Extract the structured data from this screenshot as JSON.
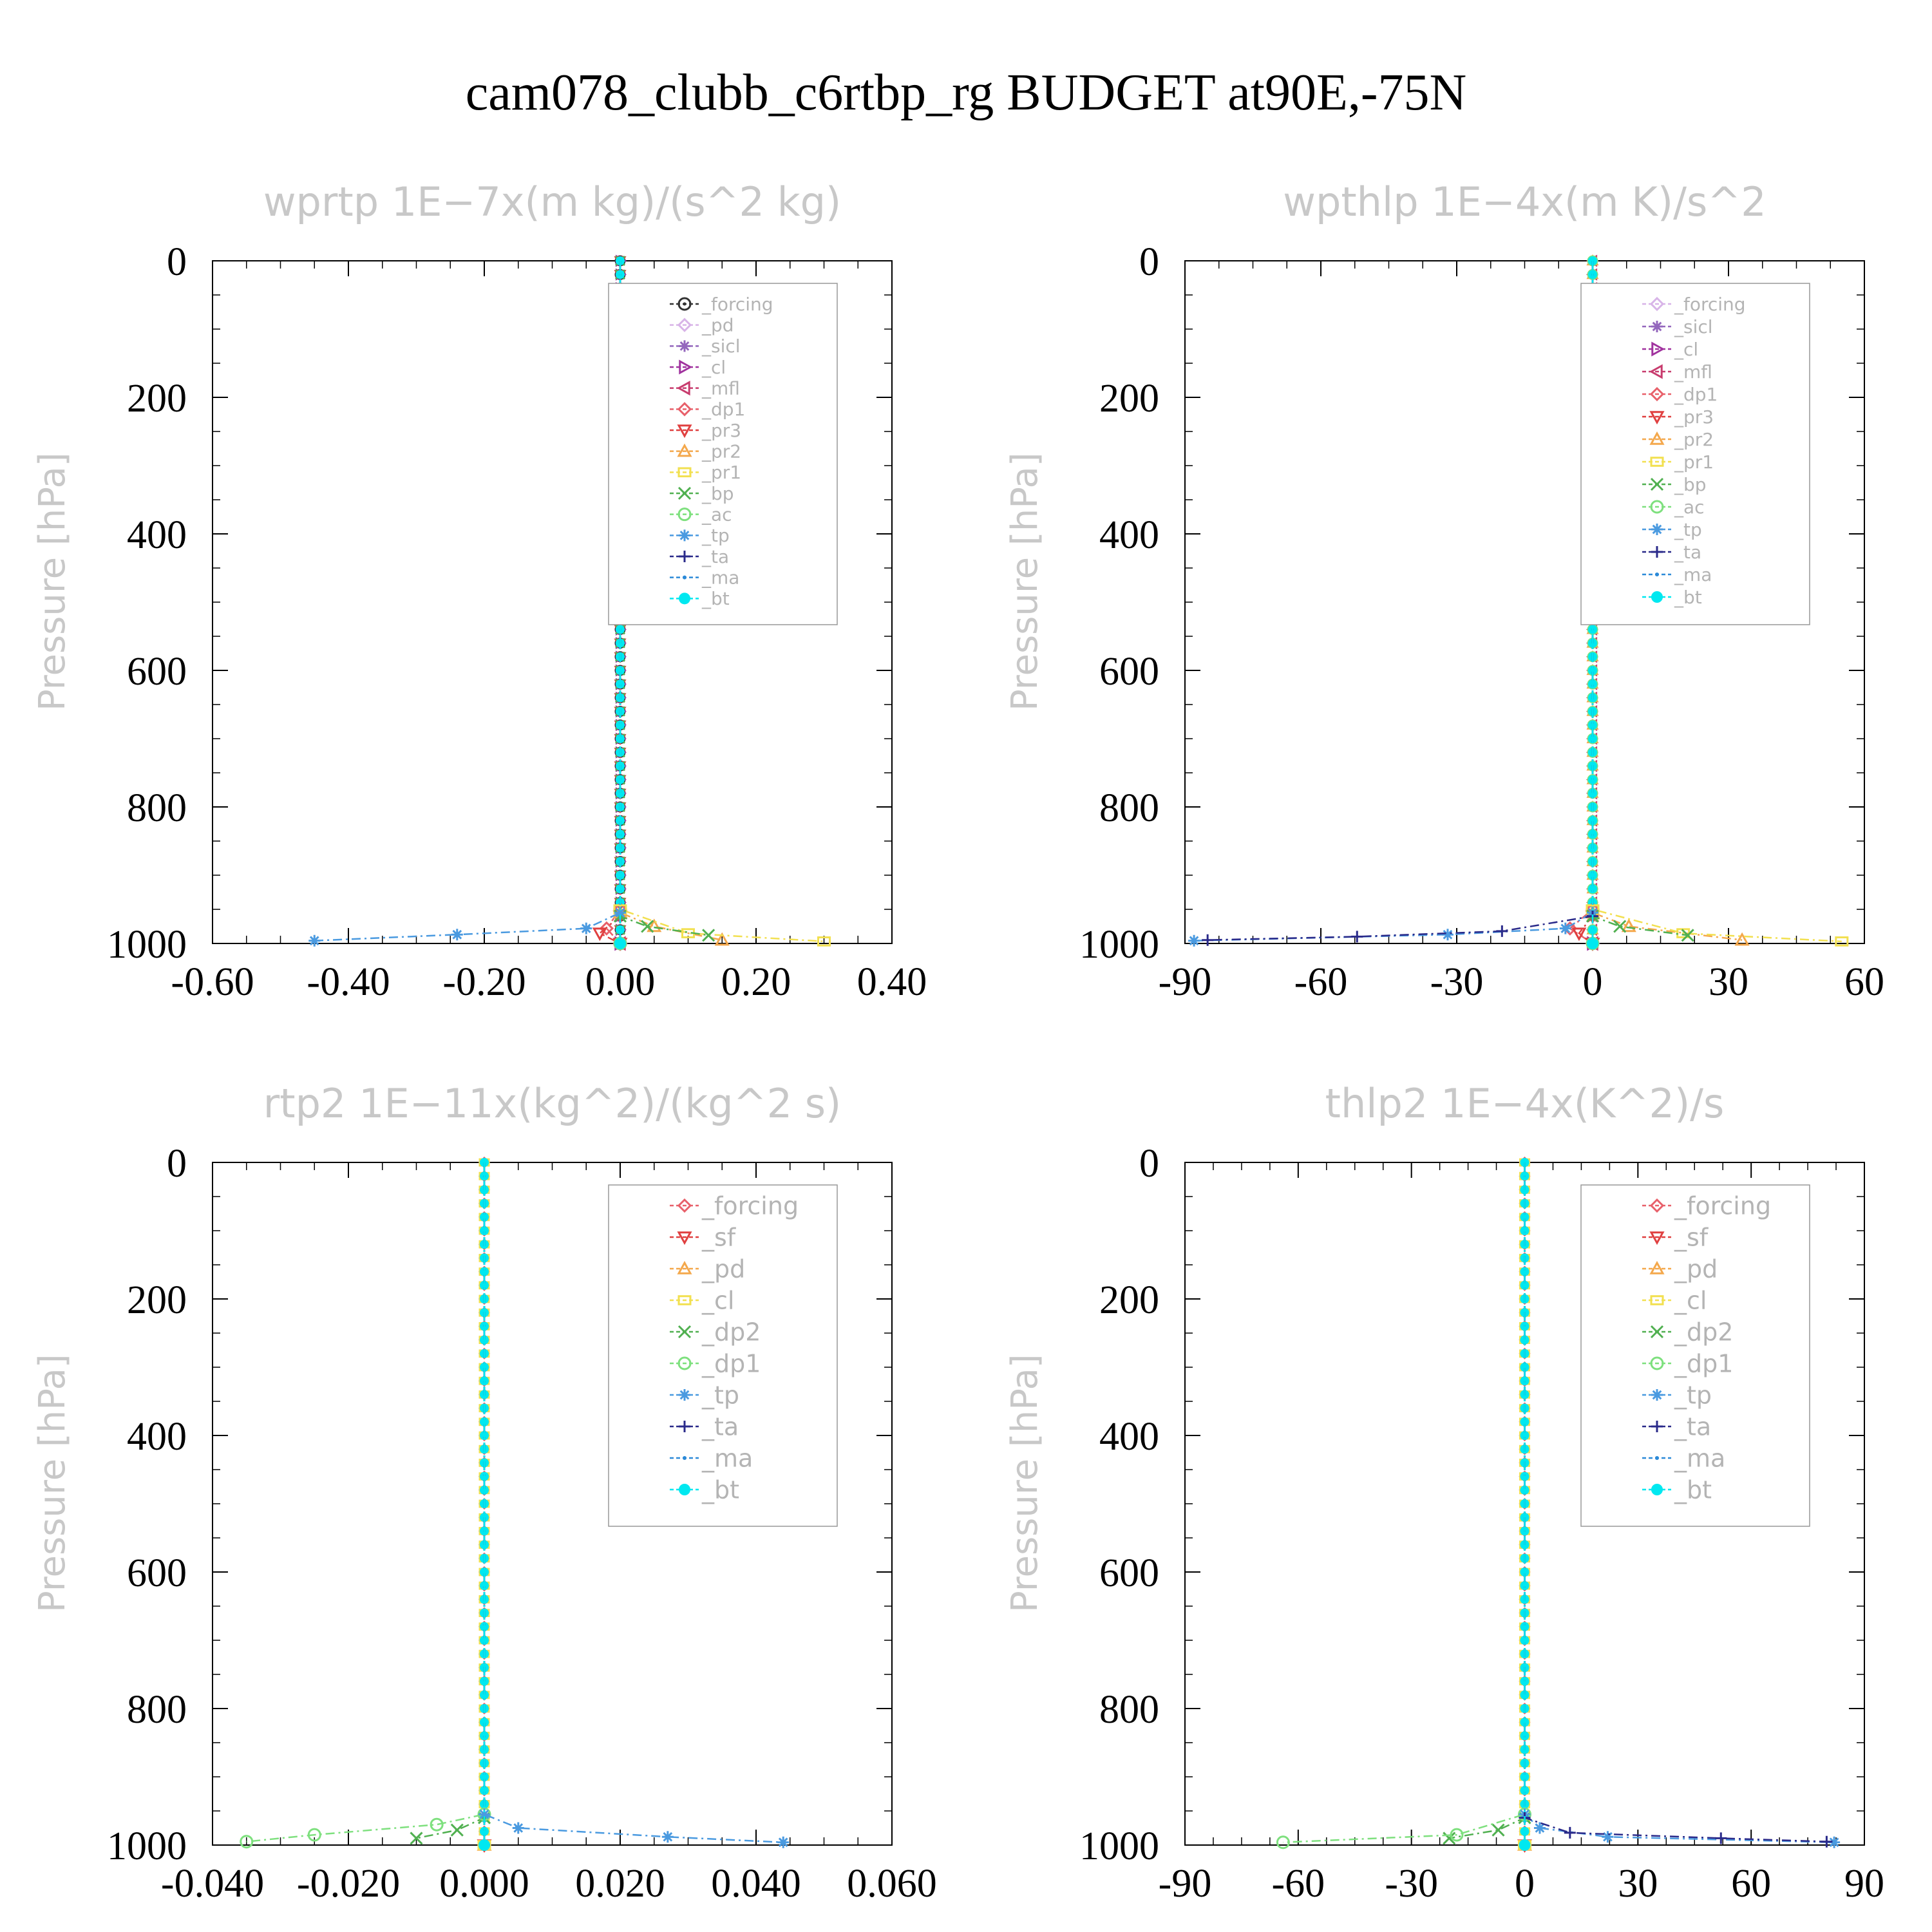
{
  "figure_title": "cam078_clubb_c6rtbp_rg  BUDGET at90E,-75N",
  "chart_data": [
    {
      "type": "line",
      "title": "wprtp   1E−7x(m kg)/(s^2 kg)",
      "ylabel": "Pressure [hPa]",
      "xlabel": "",
      "xlim": [
        -0.6,
        0.4
      ],
      "ylim": [
        1000,
        0
      ],
      "xticks": [
        "-0.60",
        "-0.40",
        "-0.20",
        "0.00",
        "0.20",
        "0.40"
      ],
      "xtick_values": [
        -0.6,
        -0.4,
        -0.2,
        0.0,
        0.2,
        0.4
      ],
      "yticks": [
        "0",
        "200",
        "400",
        "600",
        "800",
        "1000"
      ],
      "ytick_values": [
        0,
        200,
        400,
        600,
        800,
        1000
      ],
      "legend_position": "top-right",
      "series": [
        {
          "name": "_forcing",
          "color": "#333333",
          "marker": "circle-dot",
          "x": [
            0,
            0,
            0
          ],
          "y": [
            0,
            500,
            1000
          ]
        },
        {
          "name": "_pd",
          "color": "#d8b4e8",
          "marker": "diamond",
          "x": [
            0,
            0,
            0
          ],
          "y": [
            0,
            500,
            1000
          ]
        },
        {
          "name": "_sicl",
          "color": "#9467bd",
          "marker": "star",
          "x": [
            0,
            0,
            0
          ],
          "y": [
            0,
            500,
            1000
          ]
        },
        {
          "name": "_cl",
          "color": "#a0329e",
          "marker": "tri-right",
          "x": [
            0,
            0,
            0
          ],
          "y": [
            0,
            500,
            1000
          ]
        },
        {
          "name": "_mfl",
          "color": "#c83c6e",
          "marker": "tri-left",
          "x": [
            0,
            0,
            0
          ],
          "y": [
            0,
            500,
            1000
          ]
        },
        {
          "name": "_dp1",
          "color": "#e8606a",
          "marker": "diamond",
          "x": [
            0,
            0,
            -0.02,
            0
          ],
          "y": [
            0,
            950,
            978,
            1000
          ]
        },
        {
          "name": "_pr3",
          "color": "#e04040",
          "marker": "tri-down",
          "x": [
            0,
            0,
            -0.03,
            0
          ],
          "y": [
            0,
            960,
            985,
            1000
          ]
        },
        {
          "name": "_pr2",
          "color": "#f4a84c",
          "marker": "tri-up",
          "x": [
            0,
            0,
            0.05,
            0.15
          ],
          "y": [
            0,
            955,
            975,
            995
          ]
        },
        {
          "name": "_pr1",
          "color": "#f2e050",
          "marker": "square",
          "x": [
            0,
            0,
            0.1,
            0.3
          ],
          "y": [
            0,
            950,
            985,
            997
          ]
        },
        {
          "name": "_bp",
          "color": "#50b050",
          "marker": "x",
          "x": [
            0,
            0,
            0.04,
            0.13
          ],
          "y": [
            0,
            960,
            975,
            988
          ]
        },
        {
          "name": "_ac",
          "color": "#7ee07e",
          "marker": "circle",
          "x": [
            0,
            0,
            0
          ],
          "y": [
            0,
            500,
            1000
          ]
        },
        {
          "name": "_tp",
          "color": "#4a9ae0",
          "marker": "asterisk",
          "x": [
            0,
            0,
            -0.05,
            -0.24,
            -0.45
          ],
          "y": [
            0,
            955,
            978,
            987,
            996
          ]
        },
        {
          "name": "_ta",
          "color": "#2a2a8a",
          "marker": "plus",
          "x": [
            0,
            0,
            0
          ],
          "y": [
            0,
            500,
            1000
          ]
        },
        {
          "name": "_ma",
          "color": "#2c8ad8",
          "marker": "dot",
          "x": [
            0,
            0,
            0
          ],
          "y": [
            0,
            500,
            1000
          ]
        },
        {
          "name": "_bt",
          "color": "#00e8f0",
          "marker": "filled-circle",
          "x": [
            0,
            0,
            0
          ],
          "y": [
            0,
            500,
            1000
          ]
        }
      ]
    },
    {
      "type": "line",
      "title": "wpthlp   1E−4x(m K)/s^2",
      "ylabel": "Pressure [hPa]",
      "xlabel": "",
      "xlim": [
        -90,
        60
      ],
      "ylim": [
        1000,
        0
      ],
      "xticks": [
        "-90",
        "-60",
        "-30",
        "0",
        "30",
        "60"
      ],
      "xtick_values": [
        -90,
        -60,
        -30,
        0,
        30,
        60
      ],
      "yticks": [
        "0",
        "200",
        "400",
        "600",
        "800",
        "1000"
      ],
      "ytick_values": [
        0,
        200,
        400,
        600,
        800,
        1000
      ],
      "legend_position": "top-right",
      "series": [
        {
          "name": "_forcing",
          "color": "#d8b4e8",
          "marker": "diamond",
          "x": [
            0,
            0,
            0
          ],
          "y": [
            0,
            500,
            1000
          ]
        },
        {
          "name": "_sicl",
          "color": "#9467bd",
          "marker": "star",
          "x": [
            0,
            0,
            0
          ],
          "y": [
            0,
            500,
            1000
          ]
        },
        {
          "name": "_cl",
          "color": "#a0329e",
          "marker": "tri-right",
          "x": [
            0,
            0,
            0
          ],
          "y": [
            0,
            500,
            1000
          ]
        },
        {
          "name": "_mfl",
          "color": "#c83c6e",
          "marker": "tri-left",
          "x": [
            0,
            0,
            0
          ],
          "y": [
            0,
            500,
            1000
          ]
        },
        {
          "name": "_dp1",
          "color": "#e8606a",
          "marker": "diamond",
          "x": [
            0,
            0,
            -5,
            0
          ],
          "y": [
            0,
            950,
            978,
            1000
          ]
        },
        {
          "name": "_pr3",
          "color": "#e04040",
          "marker": "tri-down",
          "x": [
            0,
            0,
            -3,
            0
          ],
          "y": [
            0,
            960,
            985,
            1000
          ]
        },
        {
          "name": "_pr2",
          "color": "#f4a84c",
          "marker": "tri-up",
          "x": [
            0,
            0,
            8,
            33
          ],
          "y": [
            0,
            955,
            975,
            995
          ]
        },
        {
          "name": "_pr1",
          "color": "#f2e050",
          "marker": "square",
          "x": [
            0,
            0,
            20,
            55
          ],
          "y": [
            0,
            950,
            985,
            997
          ]
        },
        {
          "name": "_bp",
          "color": "#50b050",
          "marker": "x",
          "x": [
            0,
            0,
            6,
            21
          ],
          "y": [
            0,
            960,
            975,
            988
          ]
        },
        {
          "name": "_ac",
          "color": "#7ee07e",
          "marker": "circle",
          "x": [
            0,
            0,
            0
          ],
          "y": [
            0,
            500,
            1000
          ]
        },
        {
          "name": "_tp",
          "color": "#4a9ae0",
          "marker": "asterisk",
          "x": [
            0,
            0,
            -6,
            -32,
            -88
          ],
          "y": [
            0,
            955,
            978,
            987,
            996
          ]
        },
        {
          "name": "_ta",
          "color": "#2a2a8a",
          "marker": "plus",
          "x": [
            0,
            0,
            -20,
            -52,
            -85
          ],
          "y": [
            0,
            960,
            982,
            990,
            995
          ]
        },
        {
          "name": "_ma",
          "color": "#2c8ad8",
          "marker": "dot",
          "x": [
            0,
            0,
            0
          ],
          "y": [
            0,
            500,
            1000
          ]
        },
        {
          "name": "_bt",
          "color": "#00e8f0",
          "marker": "filled-circle",
          "x": [
            0,
            0,
            0
          ],
          "y": [
            0,
            500,
            1000
          ]
        }
      ]
    },
    {
      "type": "line",
      "title": "rtp2   1E−11x(kg^2)/(kg^2 s)",
      "ylabel": "Pressure [hPa]",
      "xlabel": "",
      "xlim": [
        -0.04,
        0.06
      ],
      "ylim": [
        1000,
        0
      ],
      "xticks": [
        "-0.040",
        "-0.020",
        "0.000",
        "0.020",
        "0.040",
        "0.060"
      ],
      "xtick_values": [
        -0.04,
        -0.02,
        0.0,
        0.02,
        0.04,
        0.06
      ],
      "yticks": [
        "0",
        "200",
        "400",
        "600",
        "800",
        "1000"
      ],
      "ytick_values": [
        0,
        200,
        400,
        600,
        800,
        1000
      ],
      "legend_position": "top-right",
      "series": [
        {
          "name": "_forcing",
          "color": "#e8606a",
          "marker": "diamond",
          "x": [
            0,
            0,
            0
          ],
          "y": [
            0,
            500,
            1000
          ]
        },
        {
          "name": "_sf",
          "color": "#e04040",
          "marker": "tri-down",
          "x": [
            0,
            0,
            0
          ],
          "y": [
            0,
            500,
            1000
          ]
        },
        {
          "name": "_pd",
          "color": "#f4a84c",
          "marker": "tri-up",
          "x": [
            0,
            0,
            0
          ],
          "y": [
            0,
            500,
            1000
          ]
        },
        {
          "name": "_cl",
          "color": "#f2e050",
          "marker": "square",
          "x": [
            0,
            0,
            0
          ],
          "y": [
            0,
            500,
            1000
          ]
        },
        {
          "name": "_dp2",
          "color": "#50b050",
          "marker": "x",
          "x": [
            0,
            0,
            -0.004,
            -0.01
          ],
          "y": [
            0,
            960,
            978,
            990
          ]
        },
        {
          "name": "_dp1",
          "color": "#7ee07e",
          "marker": "circle",
          "x": [
            0,
            0,
            -0.007,
            -0.025,
            -0.035
          ],
          "y": [
            0,
            955,
            970,
            985,
            995
          ]
        },
        {
          "name": "_tp",
          "color": "#4a9ae0",
          "marker": "asterisk",
          "x": [
            0,
            0,
            0.005,
            0.027,
            0.044
          ],
          "y": [
            0,
            955,
            975,
            988,
            996
          ]
        },
        {
          "name": "_ta",
          "color": "#2a2a8a",
          "marker": "plus",
          "x": [
            0,
            0,
            0
          ],
          "y": [
            0,
            500,
            1000
          ]
        },
        {
          "name": "_ma",
          "color": "#2c8ad8",
          "marker": "dot",
          "x": [
            0,
            0,
            0
          ],
          "y": [
            0,
            500,
            1000
          ]
        },
        {
          "name": "_bt",
          "color": "#00e8f0",
          "marker": "filled-circle",
          "x": [
            0,
            0,
            0
          ],
          "y": [
            0,
            500,
            1000
          ]
        }
      ]
    },
    {
      "type": "line",
      "title": "thlp2   1E−4x(K^2)/s",
      "ylabel": "Pressure [hPa]",
      "xlabel": "",
      "xlim": [
        -90,
        90
      ],
      "ylim": [
        1000,
        0
      ],
      "xticks": [
        "-90",
        "-60",
        "-30",
        "0",
        "30",
        "60",
        "90"
      ],
      "xtick_values": [
        -90,
        -60,
        -30,
        0,
        30,
        60,
        90
      ],
      "yticks": [
        "0",
        "200",
        "400",
        "600",
        "800",
        "1000"
      ],
      "ytick_values": [
        0,
        200,
        400,
        600,
        800,
        1000
      ],
      "legend_position": "top-right",
      "series": [
        {
          "name": "_forcing",
          "color": "#e8606a",
          "marker": "diamond",
          "x": [
            0,
            0,
            0
          ],
          "y": [
            0,
            500,
            1000
          ]
        },
        {
          "name": "_sf",
          "color": "#e04040",
          "marker": "tri-down",
          "x": [
            0,
            0,
            0
          ],
          "y": [
            0,
            500,
            1000
          ]
        },
        {
          "name": "_pd",
          "color": "#f4a84c",
          "marker": "tri-up",
          "x": [
            0,
            0,
            0
          ],
          "y": [
            0,
            500,
            1000
          ]
        },
        {
          "name": "_cl",
          "color": "#f2e050",
          "marker": "square",
          "x": [
            0,
            0,
            0
          ],
          "y": [
            0,
            500,
            1000
          ]
        },
        {
          "name": "_dp2",
          "color": "#50b050",
          "marker": "x",
          "x": [
            0,
            0,
            -7,
            -20
          ],
          "y": [
            0,
            960,
            978,
            990
          ]
        },
        {
          "name": "_dp1",
          "color": "#7ee07e",
          "marker": "circle",
          "x": [
            0,
            0,
            -18,
            -64
          ],
          "y": [
            0,
            955,
            985,
            996
          ]
        },
        {
          "name": "_tp",
          "color": "#4a9ae0",
          "marker": "asterisk",
          "x": [
            0,
            0,
            4,
            22,
            82
          ],
          "y": [
            0,
            955,
            975,
            988,
            996
          ]
        },
        {
          "name": "_ta",
          "color": "#2a2a8a",
          "marker": "plus",
          "x": [
            0,
            0,
            12,
            52,
            80
          ],
          "y": [
            0,
            960,
            982,
            990,
            995
          ]
        },
        {
          "name": "_ma",
          "color": "#2c8ad8",
          "marker": "dot",
          "x": [
            0,
            0,
            0
          ],
          "y": [
            0,
            500,
            1000
          ]
        },
        {
          "name": "_bt",
          "color": "#00e8f0",
          "marker": "filled-circle",
          "x": [
            0,
            0,
            0
          ],
          "y": [
            0,
            500,
            1000
          ]
        }
      ]
    }
  ]
}
